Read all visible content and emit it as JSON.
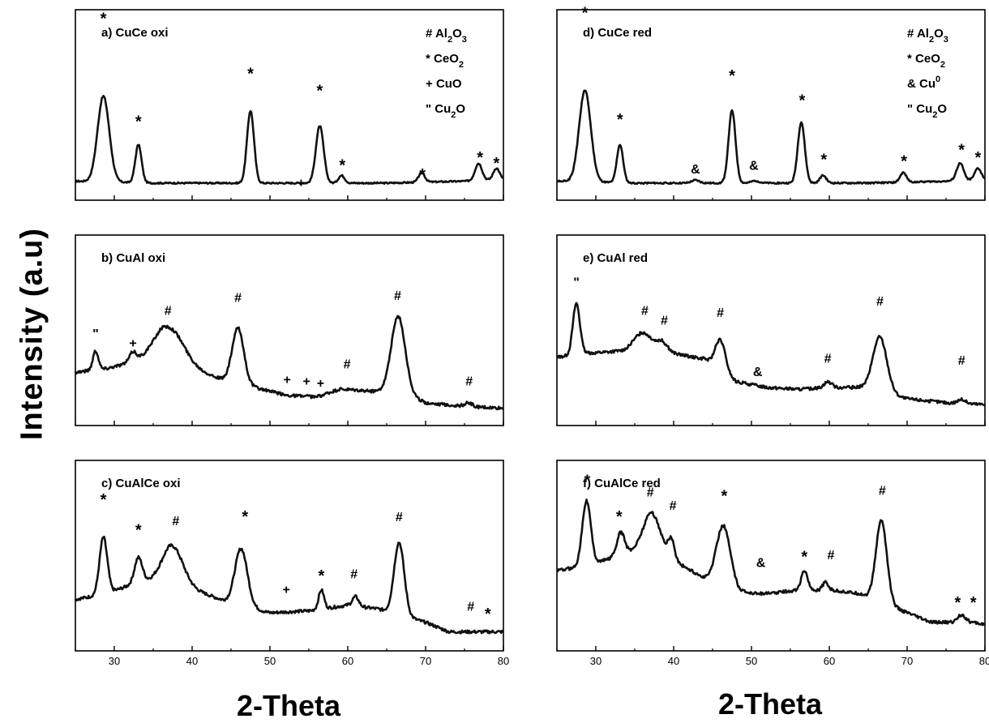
{
  "figure": {
    "ylabel": "Intensity (a.u)",
    "xlabel_left": "2-Theta",
    "xlabel_right": "2-Theta",
    "line_color": "#111111"
  },
  "chart_data": [
    {
      "type": "line",
      "title": "a) CuCe oxi",
      "xlim": [
        25,
        80
      ],
      "ylim": [
        0,
        1
      ],
      "xticks": [
        30,
        40,
        50,
        60,
        70,
        80
      ],
      "show_tick_labels": false,
      "grid": false,
      "legend": [
        {
          "symbol": "#",
          "formula": [
            [
              "Al",
              ""
            ],
            [
              "2",
              "sub"
            ],
            [
              "O",
              ""
            ],
            [
              "3",
              "sub"
            ]
          ]
        },
        {
          "symbol": "*",
          "formula": [
            [
              "CeO",
              ""
            ],
            [
              "2",
              "sub"
            ]
          ]
        },
        {
          "symbol": "+",
          "formula": [
            [
              "CuO",
              ""
            ]
          ]
        },
        {
          "symbol": "\"",
          "formula": [
            [
              "Cu",
              ""
            ],
            [
              "2",
              "sub"
            ],
            [
              "O",
              ""
            ]
          ]
        }
      ],
      "legend_position": "top-right",
      "baseline": [
        [
          25,
          0.1
        ],
        [
          35,
          0.09
        ],
        [
          45,
          0.09
        ],
        [
          55,
          0.09
        ],
        [
          65,
          0.09
        ],
        [
          75,
          0.1
        ],
        [
          80,
          0.11
        ]
      ],
      "peaks": [
        [
          28.6,
          0.75,
          0.45
        ],
        [
          33.1,
          0.4,
          0.2
        ],
        [
          47.5,
          0.45,
          0.38
        ],
        [
          56.4,
          0.5,
          0.3
        ],
        [
          59.2,
          0.4,
          0.04
        ],
        [
          69.5,
          0.4,
          0.05
        ],
        [
          76.8,
          0.45,
          0.09
        ],
        [
          79.1,
          0.4,
          0.06
        ]
      ],
      "noise": 0.004,
      "annotations": [
        {
          "x": 28.6,
          "y": 0.96,
          "t": "*"
        },
        {
          "x": 33.1,
          "y": 0.42,
          "t": "*"
        },
        {
          "x": 47.5,
          "y": 0.67,
          "t": "*"
        },
        {
          "x": 56.4,
          "y": 0.58,
          "t": "*"
        },
        {
          "x": 59.3,
          "y": 0.19,
          "t": "*"
        },
        {
          "x": 54.0,
          "y": 0.07,
          "t": "+"
        },
        {
          "x": 69.6,
          "y": 0.14,
          "t": "*"
        },
        {
          "x": 77.0,
          "y": 0.23,
          "t": "*"
        },
        {
          "x": 79.1,
          "y": 0.2,
          "t": "*"
        }
      ]
    },
    {
      "type": "line",
      "title": "b) CuAl oxi",
      "xlim": [
        25,
        80
      ],
      "ylim": [
        0,
        1
      ],
      "xticks": [
        30,
        40,
        50,
        60,
        70,
        80
      ],
      "show_tick_labels": false,
      "grid": false,
      "baseline": [
        [
          25,
          0.28
        ],
        [
          29,
          0.3
        ],
        [
          33,
          0.34
        ],
        [
          36,
          0.39
        ],
        [
          40,
          0.3
        ],
        [
          44,
          0.24
        ],
        [
          48,
          0.2
        ],
        [
          52,
          0.16
        ],
        [
          56,
          0.15
        ],
        [
          59,
          0.19
        ],
        [
          63,
          0.18
        ],
        [
          66,
          0.18
        ],
        [
          70,
          0.12
        ],
        [
          75,
          0.1
        ],
        [
          80,
          0.09
        ]
      ],
      "peaks": [
        [
          27.6,
          0.35,
          0.1
        ],
        [
          32.4,
          0.45,
          0.05
        ],
        [
          37.2,
          1.8,
          0.15
        ],
        [
          45.9,
          0.75,
          0.29
        ],
        [
          66.5,
          0.9,
          0.4
        ],
        [
          75.5,
          0.5,
          0.02
        ]
      ],
      "noise": 0.008,
      "annotations": [
        {
          "x": 27.6,
          "y": 0.46,
          "t": "\""
        },
        {
          "x": 32.4,
          "y": 0.41,
          "t": "+"
        },
        {
          "x": 36.9,
          "y": 0.58,
          "t": "#"
        },
        {
          "x": 45.9,
          "y": 0.65,
          "t": "#"
        },
        {
          "x": 52.2,
          "y": 0.22,
          "t": "+"
        },
        {
          "x": 54.7,
          "y": 0.21,
          "t": "+"
        },
        {
          "x": 56.5,
          "y": 0.2,
          "t": "+"
        },
        {
          "x": 59.9,
          "y": 0.3,
          "t": "#"
        },
        {
          "x": 66.4,
          "y": 0.66,
          "t": "#"
        },
        {
          "x": 75.6,
          "y": 0.21,
          "t": "#"
        }
      ]
    },
    {
      "type": "line",
      "title": "c) CuAlCe oxi",
      "xlim": [
        25,
        80
      ],
      "ylim": [
        0,
        1
      ],
      "xticks": [
        30,
        40,
        50,
        60,
        70,
        80
      ],
      "show_tick_labels": true,
      "grid": false,
      "baseline": [
        [
          25,
          0.27
        ],
        [
          29,
          0.3
        ],
        [
          33,
          0.36
        ],
        [
          37,
          0.38
        ],
        [
          41,
          0.31
        ],
        [
          45,
          0.25
        ],
        [
          50,
          0.2
        ],
        [
          55,
          0.21
        ],
        [
          60,
          0.24
        ],
        [
          64,
          0.22
        ],
        [
          70,
          0.15
        ],
        [
          73,
          0.1
        ],
        [
          80,
          0.1
        ]
      ],
      "peaks": [
        [
          28.6,
          0.5,
          0.3
        ],
        [
          33.1,
          0.5,
          0.13
        ],
        [
          37.5,
          1.3,
          0.18
        ],
        [
          46.3,
          0.8,
          0.3
        ],
        [
          56.6,
          0.35,
          0.1
        ],
        [
          61.0,
          0.4,
          0.05
        ],
        [
          66.6,
          0.65,
          0.38
        ]
      ],
      "noise": 0.008,
      "annotations": [
        {
          "x": 28.6,
          "y": 0.8,
          "t": "*"
        },
        {
          "x": 33.1,
          "y": 0.64,
          "t": "*"
        },
        {
          "x": 37.9,
          "y": 0.66,
          "t": "#"
        },
        {
          "x": 46.8,
          "y": 0.71,
          "t": "*"
        },
        {
          "x": 52.1,
          "y": 0.3,
          "t": "+"
        },
        {
          "x": 56.6,
          "y": 0.4,
          "t": "*"
        },
        {
          "x": 60.8,
          "y": 0.38,
          "t": "#"
        },
        {
          "x": 66.6,
          "y": 0.68,
          "t": "#"
        },
        {
          "x": 75.8,
          "y": 0.21,
          "t": "#"
        },
        {
          "x": 78.0,
          "y": 0.2,
          "t": "*"
        }
      ]
    },
    {
      "type": "line",
      "title": "d) CuCe red",
      "xlim": [
        25,
        80
      ],
      "ylim": [
        0,
        1
      ],
      "xticks": [
        30,
        40,
        50,
        60,
        70,
        80
      ],
      "show_tick_labels": false,
      "grid": false,
      "legend": [
        {
          "symbol": "#",
          "formula": [
            [
              "Al",
              ""
            ],
            [
              "2",
              "sub"
            ],
            [
              "O",
              ""
            ],
            [
              "3",
              "sub"
            ]
          ]
        },
        {
          "symbol": "*",
          "formula": [
            [
              "CeO",
              ""
            ],
            [
              "2",
              "sub"
            ]
          ]
        },
        {
          "symbol": "&",
          "formula": [
            [
              "Cu",
              ""
            ],
            [
              "0",
              "sup"
            ]
          ]
        },
        {
          "symbol": "\"",
          "formula": [
            [
              "Cu",
              ""
            ],
            [
              "2",
              "sub"
            ],
            [
              "O",
              ""
            ]
          ]
        }
      ],
      "legend_position": "top-right",
      "baseline": [
        [
          25,
          0.1
        ],
        [
          35,
          0.09
        ],
        [
          45,
          0.09
        ],
        [
          55,
          0.09
        ],
        [
          65,
          0.09
        ],
        [
          75,
          0.1
        ],
        [
          80,
          0.11
        ]
      ],
      "peaks": [
        [
          28.6,
          0.75,
          0.48
        ],
        [
          33.1,
          0.4,
          0.2
        ],
        [
          42.8,
          0.5,
          0.015
        ],
        [
          47.5,
          0.45,
          0.38
        ],
        [
          50.5,
          0.5,
          0.012
        ],
        [
          56.4,
          0.45,
          0.32
        ],
        [
          59.2,
          0.4,
          0.04
        ],
        [
          69.5,
          0.4,
          0.05
        ],
        [
          76.8,
          0.45,
          0.09
        ],
        [
          79.1,
          0.4,
          0.06
        ]
      ],
      "noise": 0.004,
      "annotations": [
        {
          "x": 28.6,
          "y": 0.99,
          "t": "*"
        },
        {
          "x": 33.1,
          "y": 0.43,
          "t": "*"
        },
        {
          "x": 42.8,
          "y": 0.14,
          "t": "&"
        },
        {
          "x": 47.5,
          "y": 0.66,
          "t": "*"
        },
        {
          "x": 50.3,
          "y": 0.16,
          "t": "&"
        },
        {
          "x": 56.5,
          "y": 0.53,
          "t": "*"
        },
        {
          "x": 59.3,
          "y": 0.22,
          "t": "*"
        },
        {
          "x": 69.6,
          "y": 0.21,
          "t": "*"
        },
        {
          "x": 77.0,
          "y": 0.27,
          "t": "*"
        },
        {
          "x": 79.1,
          "y": 0.23,
          "t": "*"
        }
      ]
    },
    {
      "type": "line",
      "title": "e) CuAl red",
      "xlim": [
        25,
        80
      ],
      "ylim": [
        0,
        1
      ],
      "xticks": [
        30,
        40,
        50,
        60,
        70,
        80
      ],
      "show_tick_labels": false,
      "grid": false,
      "baseline": [
        [
          25,
          0.36
        ],
        [
          29,
          0.38
        ],
        [
          33,
          0.39
        ],
        [
          37,
          0.4
        ],
        [
          41,
          0.37
        ],
        [
          44,
          0.35
        ],
        [
          48,
          0.23
        ],
        [
          52,
          0.2
        ],
        [
          56,
          0.19
        ],
        [
          60,
          0.2
        ],
        [
          64,
          0.2
        ],
        [
          70,
          0.14
        ],
        [
          75,
          0.12
        ],
        [
          80,
          0.11
        ]
      ],
      "peaks": [
        [
          27.5,
          0.45,
          0.27
        ],
        [
          36.0,
          1.1,
          0.09
        ],
        [
          38.5,
          0.7,
          0.05
        ],
        [
          46.0,
          0.65,
          0.16
        ],
        [
          59.8,
          0.5,
          0.03
        ],
        [
          66.5,
          0.9,
          0.29
        ],
        [
          77.0,
          0.5,
          0.02
        ]
      ],
      "noise": 0.008,
      "annotations": [
        {
          "x": 27.5,
          "y": 0.73,
          "t": "\""
        },
        {
          "x": 36.3,
          "y": 0.58,
          "t": "#"
        },
        {
          "x": 38.8,
          "y": 0.53,
          "t": "#"
        },
        {
          "x": 46.0,
          "y": 0.57,
          "t": "#"
        },
        {
          "x": 50.8,
          "y": 0.26,
          "t": "&"
        },
        {
          "x": 59.8,
          "y": 0.33,
          "t": "#"
        },
        {
          "x": 66.5,
          "y": 0.63,
          "t": "#"
        },
        {
          "x": 77.0,
          "y": 0.32,
          "t": "#"
        }
      ]
    },
    {
      "type": "line",
      "title": "f) CuAlCe red",
      "xlim": [
        25,
        80
      ],
      "ylim": [
        0,
        1
      ],
      "xticks": [
        30,
        40,
        50,
        60,
        70,
        80
      ],
      "show_tick_labels": true,
      "grid": false,
      "baseline": [
        [
          25,
          0.42
        ],
        [
          29,
          0.45
        ],
        [
          33,
          0.5
        ],
        [
          37,
          0.55
        ],
        [
          41,
          0.45
        ],
        [
          44,
          0.38
        ],
        [
          48,
          0.31
        ],
        [
          52,
          0.3
        ],
        [
          56,
          0.32
        ],
        [
          60,
          0.32
        ],
        [
          64,
          0.3
        ],
        [
          70,
          0.2
        ],
        [
          73,
          0.15
        ],
        [
          78,
          0.15
        ],
        [
          80,
          0.14
        ]
      ],
      "peaks": [
        [
          28.8,
          0.55,
          0.34
        ],
        [
          33.2,
          0.5,
          0.12
        ],
        [
          37.2,
          1.1,
          0.18
        ],
        [
          39.7,
          0.4,
          0.1
        ],
        [
          46.4,
          0.9,
          0.32
        ],
        [
          56.8,
          0.4,
          0.1
        ],
        [
          59.5,
          0.35,
          0.04
        ],
        [
          66.7,
          0.7,
          0.43
        ],
        [
          77.0,
          0.5,
          0.04
        ]
      ],
      "noise": 0.008,
      "annotations": [
        {
          "x": 28.9,
          "y": 0.9,
          "t": "*"
        },
        {
          "x": 33.0,
          "y": 0.71,
          "t": "*"
        },
        {
          "x": 37.0,
          "y": 0.81,
          "t": "#"
        },
        {
          "x": 39.9,
          "y": 0.74,
          "t": "#"
        },
        {
          "x": 46.5,
          "y": 0.82,
          "t": "*"
        },
        {
          "x": 51.2,
          "y": 0.44,
          "t": "&"
        },
        {
          "x": 56.8,
          "y": 0.5,
          "t": "*"
        },
        {
          "x": 60.2,
          "y": 0.48,
          "t": "#"
        },
        {
          "x": 66.8,
          "y": 0.82,
          "t": "#"
        },
        {
          "x": 76.5,
          "y": 0.26,
          "t": "*"
        },
        {
          "x": 78.5,
          "y": 0.26,
          "t": "*"
        }
      ]
    }
  ]
}
